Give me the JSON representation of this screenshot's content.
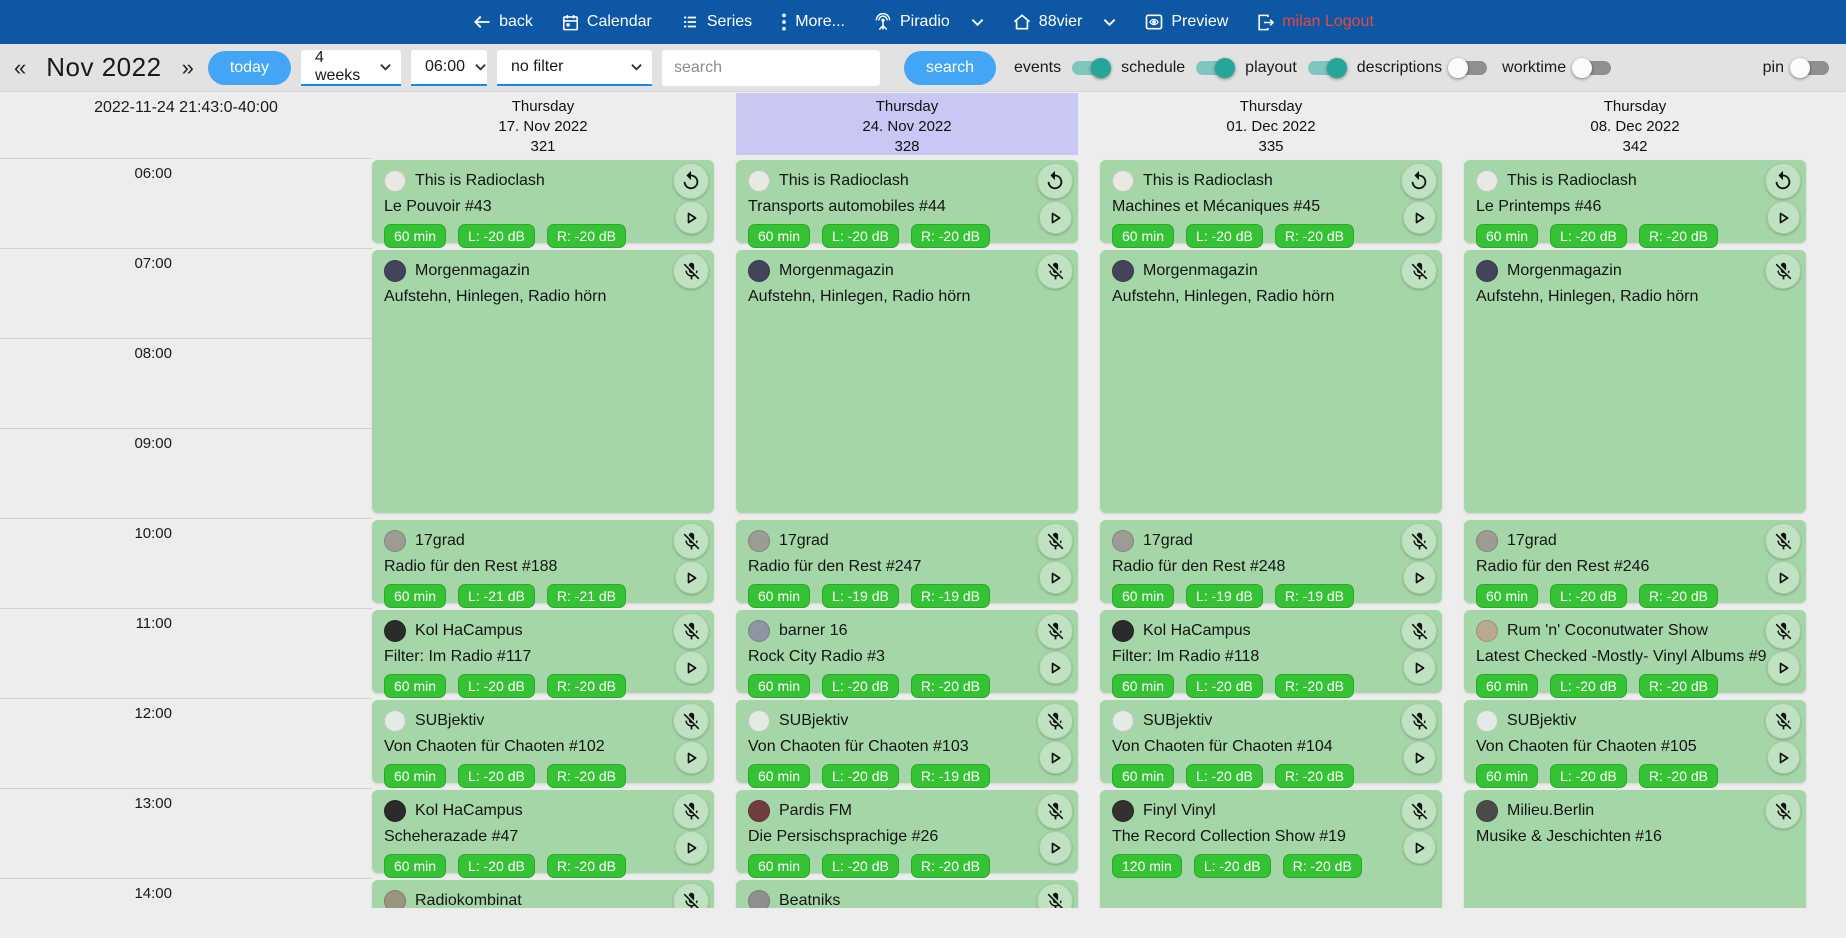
{
  "colors": {
    "navbar_blue": "#0d57a5",
    "accent_blue": "#42a5f5",
    "card_green": "#a5d6a7",
    "badge_green": "#35c335",
    "highlight_lavender": "#c9c7f3",
    "toggle_teal": "#26a69a",
    "logout_red": "#e9483f"
  },
  "navbar": {
    "items": [
      {
        "label": "back",
        "icon": "back"
      },
      {
        "label": "Calendar",
        "icon": "calendar"
      },
      {
        "label": "Series",
        "icon": "series"
      },
      {
        "label": "More...",
        "icon": "more"
      },
      {
        "label": "Piradio",
        "icon": "antenna",
        "chevron": true
      },
      {
        "label": "88vier",
        "icon": "home",
        "chevron": true
      },
      {
        "label": "Preview",
        "icon": "preview"
      }
    ],
    "logout_label": "milan Logout"
  },
  "toolbar": {
    "prev": "«",
    "month": "Nov 2022",
    "next": "»",
    "today": "today",
    "range_select": "4 weeks",
    "time_select": "06:00",
    "filter_select": "no filter",
    "search_placeholder": "search",
    "search_button": "search",
    "toggles": [
      {
        "label": "events",
        "on": true
      },
      {
        "label": "schedule",
        "on": true
      },
      {
        "label": "playout",
        "on": true
      },
      {
        "label": "descriptions",
        "on": false
      },
      {
        "label": "worktime",
        "on": false
      },
      {
        "label": "pin",
        "on": false,
        "push_right": true
      }
    ]
  },
  "grid": {
    "timestamp": "2022-11-24 21:43:0-40:00",
    "hours": [
      "06:00",
      "07:00",
      "08:00",
      "09:00",
      "10:00",
      "11:00",
      "12:00",
      "13:00",
      "14:00"
    ],
    "columns": [
      {
        "day": "Thursday",
        "date": "17. Nov 2022",
        "number": "321",
        "highlight": false,
        "events": [
          {
            "show": "This is Radioclash",
            "title": "Le Pouvoir #43",
            "badges": [
              "60 min",
              "L: -20 dB",
              "R: -20 dB"
            ],
            "icon": "replay",
            "play": true,
            "start": 0,
            "dur": 1,
            "avatar": "#e9e9e4"
          },
          {
            "show": "Morgenmagazin",
            "title": "Aufstehn, Hinlegen, Radio hörn",
            "badges": [],
            "icon": "mic-off",
            "play": false,
            "start": 1,
            "dur": 3,
            "avatar": "#43435a"
          },
          {
            "show": "17grad",
            "title": "Radio für den Rest #188",
            "badges": [
              "60 min",
              "L: -21 dB",
              "R: -21 dB"
            ],
            "icon": "mic-off",
            "play": true,
            "start": 4,
            "dur": 1,
            "avatar": "#9c9c93"
          },
          {
            "show": "Kol HaCampus",
            "title": "Filter: Im Radio #117",
            "badges": [
              "60 min",
              "L: -20 dB",
              "R: -20 dB"
            ],
            "icon": "mic-off",
            "play": true,
            "start": 5,
            "dur": 1,
            "avatar": "#2b2b2b"
          },
          {
            "show": "SUBjektiv",
            "title": "Von Chaoten für Chaoten #102",
            "badges": [
              "60 min",
              "L: -20 dB",
              "R: -20 dB"
            ],
            "icon": "mic-off",
            "play": true,
            "start": 6,
            "dur": 1,
            "avatar": "#e2ece5"
          },
          {
            "show": "Kol HaCampus",
            "title": "Scheherazade #47",
            "badges": [
              "60 min",
              "L: -20 dB",
              "R: -20 dB"
            ],
            "icon": "mic-off",
            "play": true,
            "start": 7,
            "dur": 1,
            "avatar": "#2b2b2b"
          },
          {
            "show": "Radiokombinat",
            "title": "",
            "badges": [],
            "icon": "mic-off",
            "play": false,
            "start": 8,
            "dur": 1,
            "avatar": "#9a9580"
          }
        ]
      },
      {
        "day": "Thursday",
        "date": "24. Nov 2022",
        "number": "328",
        "highlight": true,
        "events": [
          {
            "show": "This is Radioclash",
            "title": "Transports automobiles #44",
            "badges": [
              "60 min",
              "L: -20 dB",
              "R: -20 dB"
            ],
            "icon": "replay",
            "play": true,
            "start": 0,
            "dur": 1,
            "avatar": "#e9e9e4"
          },
          {
            "show": "Morgenmagazin",
            "title": "Aufstehn, Hinlegen, Radio hörn",
            "badges": [],
            "icon": "mic-off",
            "play": false,
            "start": 1,
            "dur": 3,
            "avatar": "#43435a"
          },
          {
            "show": "17grad",
            "title": "Radio für den Rest #247",
            "badges": [
              "60 min",
              "L: -19 dB",
              "R: -19 dB"
            ],
            "icon": "mic-off",
            "play": true,
            "start": 4,
            "dur": 1,
            "avatar": "#9c9c93"
          },
          {
            "show": "barner 16",
            "title": "Rock City Radio #3",
            "badges": [
              "60 min",
              "L: -20 dB",
              "R: -20 dB"
            ],
            "icon": "mic-off",
            "play": true,
            "start": 5,
            "dur": 1,
            "avatar": "#8d96a2"
          },
          {
            "show": "SUBjektiv",
            "title": "Von Chaoten für Chaoten #103",
            "badges": [
              "60 min",
              "L: -20 dB",
              "R: -19 dB"
            ],
            "icon": "mic-off",
            "play": true,
            "start": 6,
            "dur": 1,
            "avatar": "#e2ece5"
          },
          {
            "show": "Pardis FM",
            "title": "Die Persischsprachige #26",
            "badges": [
              "60 min",
              "L: -20 dB",
              "R: -20 dB"
            ],
            "icon": "mic-off",
            "play": true,
            "start": 7,
            "dur": 1,
            "avatar": "#6e3d3d"
          },
          {
            "show": "Beatniks",
            "title": "",
            "badges": [],
            "icon": "mic-off",
            "play": false,
            "start": 8,
            "dur": 1,
            "avatar": "#8f8f8f"
          }
        ]
      },
      {
        "day": "Thursday",
        "date": "01. Dec 2022",
        "number": "335",
        "highlight": false,
        "events": [
          {
            "show": "This is Radioclash",
            "title": "Machines et Mécaniques #45",
            "badges": [
              "60 min",
              "L: -20 dB",
              "R: -20 dB"
            ],
            "icon": "replay",
            "play": true,
            "start": 0,
            "dur": 1,
            "avatar": "#e9e9e4"
          },
          {
            "show": "Morgenmagazin",
            "title": "Aufstehn, Hinlegen, Radio hörn",
            "badges": [],
            "icon": "mic-off",
            "play": false,
            "start": 1,
            "dur": 3,
            "avatar": "#43435a"
          },
          {
            "show": "17grad",
            "title": "Radio für den Rest #248",
            "badges": [
              "60 min",
              "L: -19 dB",
              "R: -19 dB"
            ],
            "icon": "mic-off",
            "play": true,
            "start": 4,
            "dur": 1,
            "avatar": "#9c9c93"
          },
          {
            "show": "Kol HaCampus",
            "title": "Filter: Im Radio #118",
            "badges": [
              "60 min",
              "L: -20 dB",
              "R: -20 dB"
            ],
            "icon": "mic-off",
            "play": true,
            "start": 5,
            "dur": 1,
            "avatar": "#2b2b2b"
          },
          {
            "show": "SUBjektiv",
            "title": "Von Chaoten für Chaoten #104",
            "badges": [
              "60 min",
              "L: -20 dB",
              "R: -20 dB"
            ],
            "icon": "mic-off",
            "play": true,
            "start": 6,
            "dur": 1,
            "avatar": "#e2ece5"
          },
          {
            "show": "Finyl Vinyl",
            "title": "The Record Collection Show #19",
            "badges": [
              "120 min",
              "L: -20 dB",
              "R: -20 dB"
            ],
            "icon": "mic-off",
            "play": true,
            "start": 7,
            "dur": 2,
            "avatar": "#33302e"
          }
        ]
      },
      {
        "day": "Thursday",
        "date": "08. Dec 2022",
        "number": "342",
        "highlight": false,
        "events": [
          {
            "show": "This is Radioclash",
            "title": "Le Printemps #46",
            "badges": [
              "60 min",
              "L: -20 dB",
              "R: -20 dB"
            ],
            "icon": "replay",
            "play": true,
            "start": 0,
            "dur": 1,
            "avatar": "#e9e9e4"
          },
          {
            "show": "Morgenmagazin",
            "title": "Aufstehn, Hinlegen, Radio hörn",
            "badges": [],
            "icon": "mic-off",
            "play": false,
            "start": 1,
            "dur": 3,
            "avatar": "#43435a"
          },
          {
            "show": "17grad",
            "title": "Radio für den Rest #246",
            "badges": [
              "60 min",
              "L: -20 dB",
              "R: -20 dB"
            ],
            "icon": "mic-off",
            "play": true,
            "start": 4,
            "dur": 1,
            "avatar": "#9c9c93"
          },
          {
            "show": "Rum 'n' Coconutwater Show",
            "title": "Latest Checked -Mostly- Vinyl Albums #9",
            "badges": [
              "60 min",
              "L: -20 dB",
              "R: -20 dB"
            ],
            "icon": "mic-off",
            "play": true,
            "start": 5,
            "dur": 1,
            "avatar": "#b9a98f"
          },
          {
            "show": "SUBjektiv",
            "title": "Von Chaoten für Chaoten #105",
            "badges": [
              "60 min",
              "L: -20 dB",
              "R: -20 dB"
            ],
            "icon": "mic-off",
            "play": true,
            "start": 6,
            "dur": 1,
            "avatar": "#e2ece5"
          },
          {
            "show": "Milieu.Berlin",
            "title": "Musike & Jeschichten #16",
            "badges": [],
            "icon": "mic-off",
            "play": false,
            "start": 7,
            "dur": 2,
            "avatar": "#4a4a4a"
          }
        ]
      }
    ]
  }
}
